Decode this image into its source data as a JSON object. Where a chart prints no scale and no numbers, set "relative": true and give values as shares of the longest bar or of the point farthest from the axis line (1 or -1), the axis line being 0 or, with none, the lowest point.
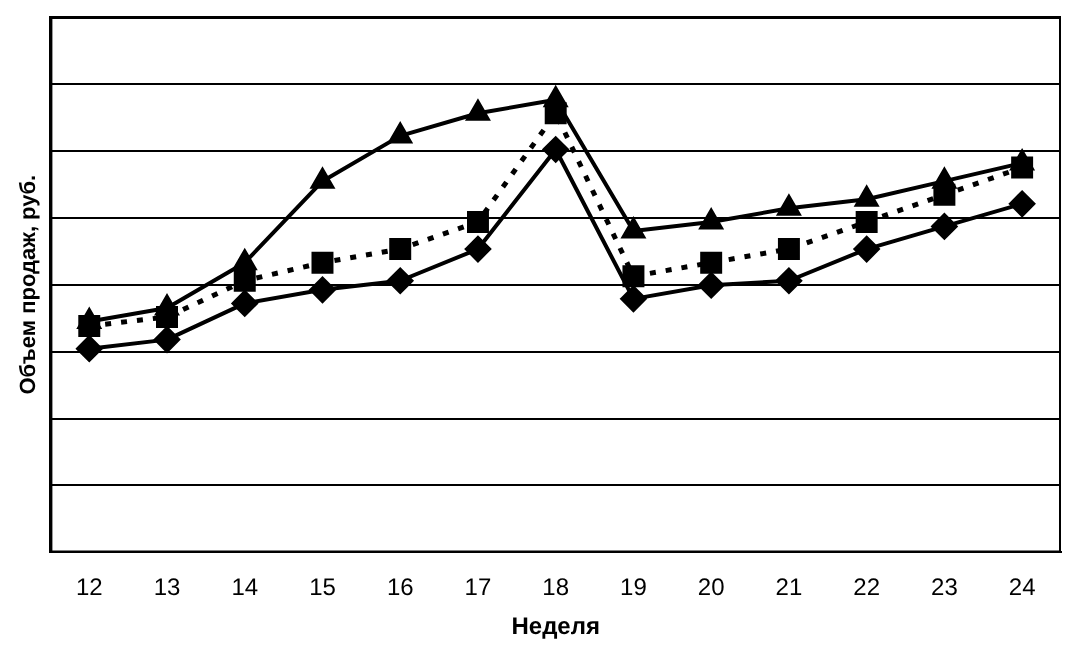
{
  "chart_data": {
    "type": "line",
    "xlabel": "Неделя",
    "ylabel": "Объем продаж, руб.",
    "relative": true,
    "grid": "y",
    "legend": false,
    "categories": [
      "12",
      "13",
      "14",
      "15",
      "16",
      "17",
      "18",
      "19",
      "20",
      "21",
      "22",
      "23",
      "24"
    ],
    "series": [
      {
        "color": "#000000",
        "marker": "triangle",
        "line_style": "solid",
        "values": [
          0.51,
          0.54,
          0.64,
          0.82,
          0.92,
          0.97,
          1,
          0.71,
          0.73,
          0.76,
          0.78,
          0.82,
          0.86
        ]
      },
      {
        "color": "#000000",
        "marker": "square",
        "line_style": "dotted",
        "values": [
          0.5,
          0.52,
          0.6,
          0.64,
          0.67,
          0.73,
          0.97,
          0.61,
          0.64,
          0.67,
          0.73,
          0.79,
          0.85
        ]
      },
      {
        "color": "#000000",
        "marker": "diamond",
        "line_style": "solid",
        "values": [
          0.45,
          0.47,
          0.55,
          0.58,
          0.6,
          0.67,
          0.89,
          0.56,
          0.59,
          0.6,
          0.67,
          0.72,
          0.77
        ]
      }
    ]
  }
}
